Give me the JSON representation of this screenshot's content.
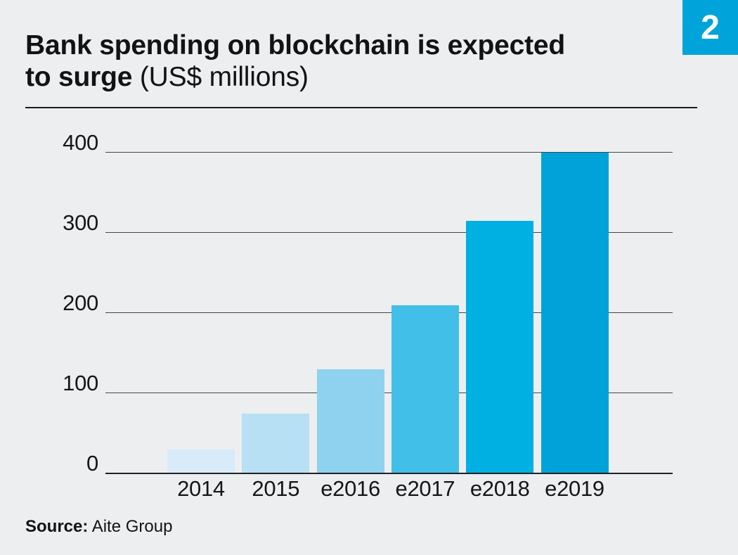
{
  "page": {
    "background_color": "#EDEEF0",
    "badge": {
      "number": "2",
      "background_color": "#00A4DB",
      "text_color": "#FFFFFF"
    },
    "title": {
      "line1_bold": "Bank spending on blockchain is expected",
      "line2_bold": "to surge",
      "line2_regular": "(US$ millions)"
    },
    "source": {
      "label": "Source:",
      "value": "Aite Group"
    }
  },
  "chart_data": {
    "type": "bar",
    "title": "Bank spending on blockchain is expected to surge",
    "units": "US$ millions",
    "categories": [
      "2014",
      "2015",
      "e2016",
      "e2017",
      "e2018",
      "e2019"
    ],
    "values": [
      30,
      75,
      130,
      210,
      315,
      400
    ],
    "bar_colors": [
      "#D7EBF8",
      "#B8E0F5",
      "#8FD2F0",
      "#41BFE8",
      "#00B0E3",
      "#00A2DA"
    ],
    "xlabel": "",
    "ylabel": "",
    "ylim": [
      0,
      400
    ],
    "yticks": [
      0,
      100,
      200,
      300,
      400
    ],
    "grid": true,
    "legend": "none",
    "gridline_color": "#43474a",
    "source": "Aite Group"
  }
}
